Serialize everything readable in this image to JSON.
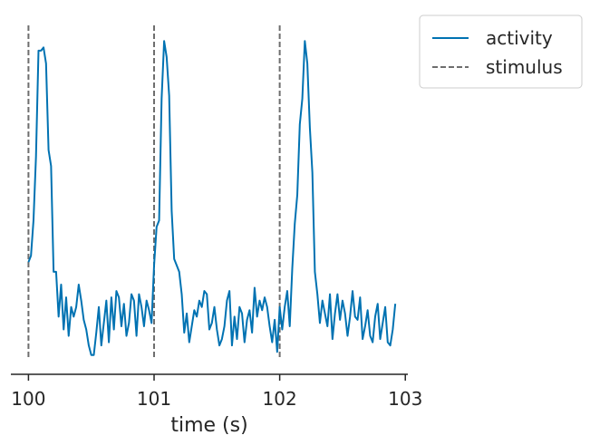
{
  "chart_data": {
    "type": "line",
    "title": "",
    "xlabel": "time (s)",
    "ylabel": "",
    "xlim": [
      99.86,
      103.02
    ],
    "ylim": [
      -0.06,
      1.06
    ],
    "x_ticks": [
      100,
      101,
      102,
      103
    ],
    "x_tick_labels": [
      "100",
      "101",
      "102",
      "103"
    ],
    "y_ticks_shown": false,
    "grid": false,
    "legend_position": "outside-top-right",
    "colors": {
      "activity": "#0072b2",
      "stimulus": "#6e6e6e",
      "axis": "#262626"
    },
    "stimulus": {
      "name": "stimulus",
      "style": "dashed",
      "times": [
        100,
        101,
        102
      ]
    },
    "series": [
      {
        "name": "activity",
        "x_start": 100.0,
        "x_step": 0.02,
        "values": [
          0.29,
          0.31,
          0.42,
          0.62,
          0.95,
          0.95,
          0.96,
          0.91,
          0.64,
          0.59,
          0.26,
          0.26,
          0.12,
          0.22,
          0.08,
          0.18,
          0.06,
          0.15,
          0.12,
          0.15,
          0.22,
          0.17,
          0.11,
          0.08,
          0.03,
          0.0,
          0.0,
          0.07,
          0.15,
          0.03,
          0.1,
          0.17,
          0.04,
          0.18,
          0.08,
          0.2,
          0.18,
          0.09,
          0.16,
          0.06,
          0.1,
          0.19,
          0.17,
          0.06,
          0.19,
          0.15,
          0.09,
          0.17,
          0.14,
          0.1,
          0.28,
          0.4,
          0.42,
          0.8,
          0.98,
          0.93,
          0.81,
          0.45,
          0.3,
          0.28,
          0.26,
          0.19,
          0.07,
          0.13,
          0.04,
          0.09,
          0.14,
          0.12,
          0.17,
          0.15,
          0.2,
          0.19,
          0.08,
          0.1,
          0.15,
          0.08,
          0.03,
          0.05,
          0.09,
          0.17,
          0.2,
          0.03,
          0.12,
          0.05,
          0.15,
          0.13,
          0.04,
          0.11,
          0.14,
          0.07,
          0.21,
          0.12,
          0.17,
          0.14,
          0.18,
          0.15,
          0.09,
          0.04,
          0.11,
          0.01,
          0.15,
          0.08,
          0.15,
          0.2,
          0.09,
          0.27,
          0.41,
          0.5,
          0.72,
          0.8,
          0.98,
          0.91,
          0.71,
          0.57,
          0.26,
          0.19,
          0.1,
          0.17,
          0.13,
          0.09,
          0.19,
          0.05,
          0.13,
          0.19,
          0.11,
          0.17,
          0.13,
          0.06,
          0.12,
          0.2,
          0.12,
          0.11,
          0.18,
          0.05,
          0.09,
          0.14,
          0.06,
          0.04,
          0.12,
          0.16,
          0.05,
          0.1,
          0.15,
          0.04,
          0.03,
          0.08,
          0.16
        ]
      }
    ]
  }
}
